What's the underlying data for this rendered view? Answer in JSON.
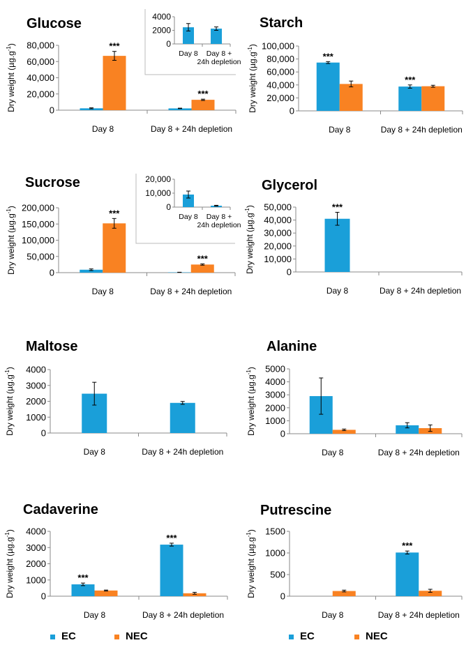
{
  "colors": {
    "EC": "#1a9fd9",
    "NEC": "#f98222",
    "axis": "#888888",
    "text": "#000000"
  },
  "legend": {
    "ec_label": "EC",
    "nec_label": "NEC"
  },
  "chart_data": [
    {
      "type": "bar",
      "title": "Glucose",
      "ylabel": "Dry weight (µg.g⁻¹)",
      "categories": [
        "Day 8",
        "Day 8 + 24h depletion"
      ],
      "yticks": [
        "0",
        "20,000",
        "40,000",
        "60,000",
        "80,000"
      ],
      "ylim": [
        0,
        80000
      ],
      "series": [
        {
          "name": "EC",
          "values": [
            2300,
            2200
          ],
          "errors": [
            600,
            300
          ],
          "sig": [
            "",
            ""
          ]
        },
        {
          "name": "NEC",
          "values": [
            67000,
            12800
          ],
          "errors": [
            5500,
            800
          ],
          "sig": [
            "***",
            "***"
          ]
        }
      ],
      "inset": {
        "categories": [
          "Day 8",
          "Day 8 + 24h depletion"
        ],
        "cat_lines": [
          [
            "Day 8"
          ],
          [
            "Day 8 +",
            "24h depletion"
          ]
        ],
        "yticks": [
          "0",
          "2000",
          "4000"
        ],
        "ylim": [
          0,
          4000
        ],
        "values": [
          2450,
          2250
        ],
        "errors": [
          550,
          250
        ]
      }
    },
    {
      "type": "bar",
      "title": "Starch",
      "ylabel": "Dry weight (µg.g⁻¹)",
      "categories": [
        "Day 8",
        "Day 8 + 24h depletion"
      ],
      "yticks": [
        "0",
        "20,000",
        "40,000",
        "60,000",
        "80,000",
        "100,000"
      ],
      "ylim": [
        0,
        100000
      ],
      "series": [
        {
          "name": "EC",
          "values": [
            74500,
            37500
          ],
          "errors": [
            1500,
            2500
          ],
          "sig": [
            "***",
            "***"
          ]
        },
        {
          "name": "NEC",
          "values": [
            41500,
            38000
          ],
          "errors": [
            4500,
            1500
          ],
          "sig": [
            "",
            ""
          ]
        }
      ]
    },
    {
      "type": "bar",
      "title": "Sucrose",
      "ylabel": "Dry weight (µg.g⁻¹)",
      "categories": [
        "Day 8",
        "Day 8 + 24h depletion"
      ],
      "yticks": [
        "0",
        "50,000",
        "100,000",
        "150,000",
        "200,000"
      ],
      "ylim": [
        0,
        200000
      ],
      "series": [
        {
          "name": "EC",
          "values": [
            9000,
            1000
          ],
          "errors": [
            2500,
            300
          ],
          "sig": [
            "",
            ""
          ]
        },
        {
          "name": "NEC",
          "values": [
            152000,
            25000
          ],
          "errors": [
            15000,
            2000
          ],
          "sig": [
            "***",
            "***"
          ]
        }
      ],
      "inset": {
        "categories": [
          "Day 8",
          "Day 8 + 24h depletion"
        ],
        "cat_lines": [
          [
            "Day 8"
          ],
          [
            "Day 8 +",
            "24h depletion"
          ]
        ],
        "yticks": [
          "0",
          "10,000",
          "20,000"
        ],
        "ylim": [
          0,
          20000
        ],
        "values": [
          9000,
          1000
        ],
        "errors": [
          2500,
          300
        ]
      }
    },
    {
      "type": "bar",
      "title": "Glycerol",
      "ylabel": "Dry weight (µg.g⁻¹)",
      "categories": [
        "Day 8",
        "Day 8 + 24h depletion"
      ],
      "yticks": [
        "0",
        "10,000",
        "20,000",
        "30,000",
        "40,000",
        "50,000"
      ],
      "ylim": [
        0,
        50000
      ],
      "series": [
        {
          "name": "EC",
          "values": [
            41000,
            null
          ],
          "errors": [
            5000,
            null
          ],
          "sig": [
            "***",
            ""
          ]
        }
      ]
    },
    {
      "type": "bar",
      "title": "Maltose",
      "ylabel": "Dry weight (µg.g⁻¹)",
      "categories": [
        "Day 8",
        "Day 8 + 24h depletion"
      ],
      "yticks": [
        "0",
        "1000",
        "2000",
        "3000",
        "4000"
      ],
      "ylim": [
        0,
        4000
      ],
      "series": [
        {
          "name": "EC",
          "values": [
            2480,
            1900
          ],
          "errors": [
            720,
            90
          ],
          "sig": [
            "",
            ""
          ]
        }
      ]
    },
    {
      "type": "bar",
      "title": "Alanine",
      "ylabel": "Dry weight (µg.g⁻¹)",
      "categories": [
        "Day 8",
        "Day 8 + 24h depletion"
      ],
      "yticks": [
        "0",
        "1000",
        "2000",
        "3000",
        "4000",
        "5000"
      ],
      "ylim": [
        0,
        5000
      ],
      "series": [
        {
          "name": "EC",
          "values": [
            2900,
            650
          ],
          "errors": [
            1400,
            200
          ],
          "sig": [
            "",
            ""
          ]
        },
        {
          "name": "NEC",
          "values": [
            300,
            430
          ],
          "errors": [
            60,
            250
          ],
          "sig": [
            "",
            ""
          ]
        }
      ]
    },
    {
      "type": "bar",
      "title": "Cadaverine",
      "ylabel": "Dry weight (µg.g⁻¹)",
      "categories": [
        "Day 8",
        "Day 8 + 24h depletion"
      ],
      "yticks": [
        "0",
        "1000",
        "2000",
        "3000",
        "4000"
      ],
      "ylim": [
        0,
        4000
      ],
      "series": [
        {
          "name": "EC",
          "values": [
            730,
            3180
          ],
          "errors": [
            80,
            90
          ],
          "sig": [
            "***",
            "***"
          ]
        },
        {
          "name": "NEC",
          "values": [
            350,
            180
          ],
          "errors": [
            30,
            60
          ],
          "sig": [
            "",
            ""
          ]
        }
      ]
    },
    {
      "type": "bar",
      "title": "Putrescine",
      "ylabel": "Dry weight (µg.g⁻¹)",
      "categories": [
        "Day 8",
        "Day 8 + 24h depletion"
      ],
      "yticks": [
        "0",
        "500",
        "1000",
        "1500"
      ],
      "ylim": [
        0,
        1500
      ],
      "series": [
        {
          "name": "EC",
          "values": [
            null,
            1010
          ],
          "errors": [
            null,
            35
          ],
          "sig": [
            "",
            "***"
          ]
        },
        {
          "name": "NEC",
          "values": [
            120,
            125
          ],
          "errors": [
            20,
            35
          ],
          "sig": [
            "",
            ""
          ]
        }
      ]
    }
  ]
}
